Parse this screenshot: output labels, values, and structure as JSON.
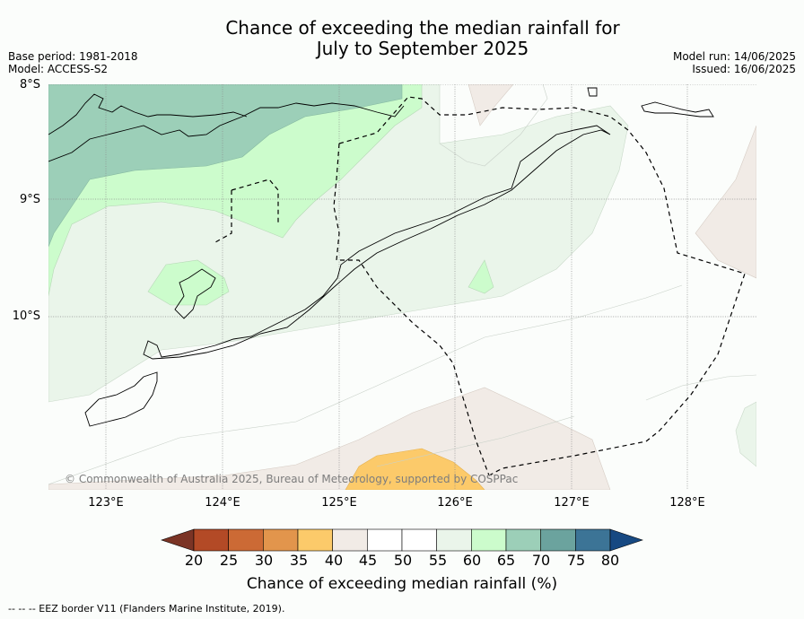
{
  "title_line1": "Chance of exceeding the median rainfall for",
  "title_line2": "July to September 2025",
  "meta_left": {
    "base_period": "Base period: 1981-2018",
    "model": "Model: ACCESS-S2"
  },
  "meta_right": {
    "model_run": "Model run: 14/06/2025",
    "issued": "Issued: 16/06/2025"
  },
  "lat_labels": [
    "8°S",
    "9°S",
    "10°S"
  ],
  "lon_labels": [
    "123°E",
    "124°E",
    "125°E",
    "126°E",
    "127°E",
    "128°E"
  ],
  "copyright": "© Commonwealth of Australia 2025, Bureau of Meteorology, supported by COSPPac",
  "colorbar": {
    "title": "Chance of exceeding median rainfall (%)",
    "ticks": [
      "20",
      "25",
      "30",
      "35",
      "40",
      "45",
      "50",
      "55",
      "60",
      "65",
      "70",
      "75",
      "80"
    ],
    "colors": [
      "#7b3425",
      "#b34a26",
      "#cc6a35",
      "#e2954c",
      "#fcca6a",
      "#f1ebe6",
      "#ffffff",
      "#ffffff",
      "#eaf5ea",
      "#ccfccc",
      "#9ccfb8",
      "#6ba39e",
      "#3c7496",
      "#174982"
    ]
  },
  "footer": "--  --  -- EEZ border V11 (Flanders Marine Institute, 2019)."
}
